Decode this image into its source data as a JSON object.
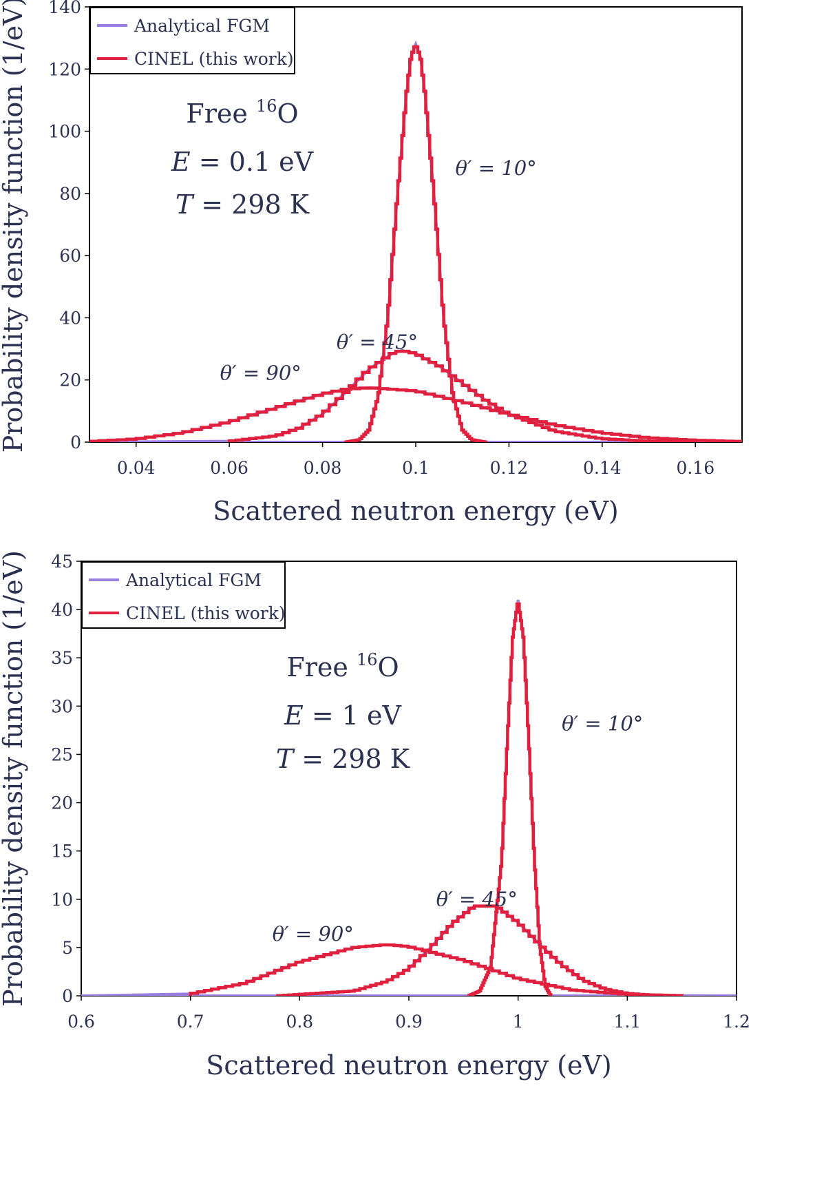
{
  "colors": {
    "analytical": "#9b7fe0",
    "cinel": "#e0203c",
    "text": "#2b3150",
    "frame": "#000000"
  },
  "chart_data": [
    {
      "type": "line",
      "xlabel": "Scattered neutron energy (eV)",
      "ylabel": "Probability density function (1/eV)",
      "xlim": [
        0.03,
        0.17
      ],
      "ylim": [
        0,
        140
      ],
      "xticks": [
        0.04,
        0.06,
        0.08,
        0.1,
        0.12,
        0.14,
        0.16
      ],
      "xtick_labels": [
        "0.04",
        "0.06",
        "0.08",
        "0.1",
        "0.12",
        "0.14",
        "0.16"
      ],
      "yticks": [
        0,
        20,
        40,
        60,
        80,
        100,
        120,
        140
      ],
      "ytick_labels": [
        "0",
        "20",
        "40",
        "60",
        "80",
        "100",
        "120",
        "140"
      ],
      "legend": {
        "position": "top-left",
        "entries": [
          "Analytical FGM",
          "CINEL (this work)"
        ]
      },
      "info": {
        "line1": "Free ",
        "sup": "16",
        "line1b": "O",
        "energy_var": "E",
        "energy_val": " = 0.1 eV",
        "temp_var": "T",
        "temp_val": " = 298 K"
      },
      "series": [
        {
          "name": "Analytical FGM",
          "angle": "θ′ = 10°",
          "x": [
            0.085,
            0.088,
            0.09,
            0.092,
            0.094,
            0.096,
            0.098,
            0.099,
            0.1,
            0.101,
            0.102,
            0.104,
            0.106,
            0.108,
            0.11,
            0.112,
            0.115
          ],
          "y": [
            0,
            0.8,
            4,
            15,
            40,
            78,
            112,
            124,
            128,
            124,
            112,
            78,
            40,
            15,
            4,
            0.8,
            0
          ]
        },
        {
          "name": "Analytical FGM",
          "angle": "θ′ = 45°",
          "x": [
            0.06,
            0.07,
            0.075,
            0.08,
            0.085,
            0.09,
            0.095,
            0.097,
            0.1,
            0.105,
            0.11,
            0.115,
            0.12,
            0.13,
            0.14,
            0.15,
            0.16
          ],
          "y": [
            0.3,
            2,
            4.5,
            9,
            16,
            23.5,
            28.5,
            29.5,
            28.5,
            24.5,
            19,
            13.5,
            9,
            3.5,
            1.1,
            0.3,
            0
          ]
        },
        {
          "name": "Analytical FGM",
          "angle": "θ′ = 90°",
          "x": [
            0.03,
            0.04,
            0.05,
            0.06,
            0.07,
            0.08,
            0.085,
            0.09,
            0.1,
            0.11,
            0.12,
            0.13,
            0.14,
            0.15,
            0.16,
            0.17
          ],
          "y": [
            0.2,
            1,
            3,
            6.5,
            11,
            15.5,
            17,
            17.5,
            16.5,
            13,
            9,
            5.5,
            3,
            1.4,
            0.6,
            0.2
          ]
        }
      ],
      "annotations": [
        {
          "text": "θ′ = 10°",
          "x": 0.1085,
          "y": 86
        },
        {
          "text": "θ′ = 45°",
          "x": 0.083,
          "y": 30
        },
        {
          "text": "θ′ = 90°",
          "x": 0.058,
          "y": 20
        }
      ]
    },
    {
      "type": "line",
      "xlabel": "Scattered neutron energy (eV)",
      "ylabel": "Probability density function (1/eV)",
      "xlim": [
        0.6,
        1.2
      ],
      "ylim": [
        0,
        45
      ],
      "xticks": [
        0.6,
        0.7,
        0.8,
        0.9,
        1.0,
        1.1,
        1.2
      ],
      "xtick_labels": [
        "0.6",
        "0.7",
        "0.8",
        "0.9",
        "1",
        "1.1",
        "1.2"
      ],
      "yticks": [
        0,
        5,
        10,
        15,
        20,
        25,
        30,
        35,
        40,
        45
      ],
      "ytick_labels": [
        "0",
        "5",
        "10",
        "15",
        "20",
        "25",
        "30",
        "35",
        "40",
        "45"
      ],
      "legend": {
        "position": "top-left",
        "entries": [
          "Analytical FGM",
          "CINEL (this work)"
        ]
      },
      "info": {
        "line1": "Free ",
        "sup": "16",
        "line1b": "O",
        "energy_var": "E",
        "energy_val": " = 1 eV",
        "temp_var": "T",
        "temp_val": " = 298 K"
      },
      "series": [
        {
          "name": "Analytical FGM",
          "angle": "θ′ = 10°",
          "x": [
            0.955,
            0.965,
            0.975,
            0.985,
            0.99,
            0.995,
            1.0,
            1.005,
            1.01,
            1.015,
            1.02,
            1.025,
            1.03
          ],
          "y": [
            0,
            0.5,
            3,
            14,
            26,
            37,
            41,
            37,
            26,
            14,
            5,
            1,
            0
          ]
        },
        {
          "name": "Analytical FGM",
          "angle": "θ′ = 45°",
          "x": [
            0.78,
            0.85,
            0.88,
            0.9,
            0.92,
            0.94,
            0.96,
            0.98,
            1.0,
            1.02,
            1.04,
            1.06,
            1.08,
            1.1,
            1.13
          ],
          "y": [
            0,
            0.5,
            1.5,
            2.8,
            5,
            7.5,
            9.3,
            9.3,
            7.6,
            5.3,
            3.2,
            1.6,
            0.7,
            0.25,
            0
          ]
        },
        {
          "name": "Analytical FGM",
          "angle": "θ′ = 90°",
          "x": [
            0.7,
            0.75,
            0.8,
            0.85,
            0.88,
            0.9,
            0.95,
            1.0,
            1.05,
            1.1,
            1.15
          ],
          "y": [
            0.2,
            1.3,
            3.5,
            5,
            5.3,
            5.1,
            3.7,
            1.8,
            0.6,
            0.15,
            0.02
          ]
        }
      ],
      "annotations": [
        {
          "text": "θ′ = 10°",
          "x": 1.04,
          "y": 27.5
        },
        {
          "text": "θ′ = 45°",
          "x": 0.925,
          "y": 9.3
        },
        {
          "text": "θ′ = 90°",
          "x": 0.775,
          "y": 5.7
        }
      ]
    }
  ]
}
